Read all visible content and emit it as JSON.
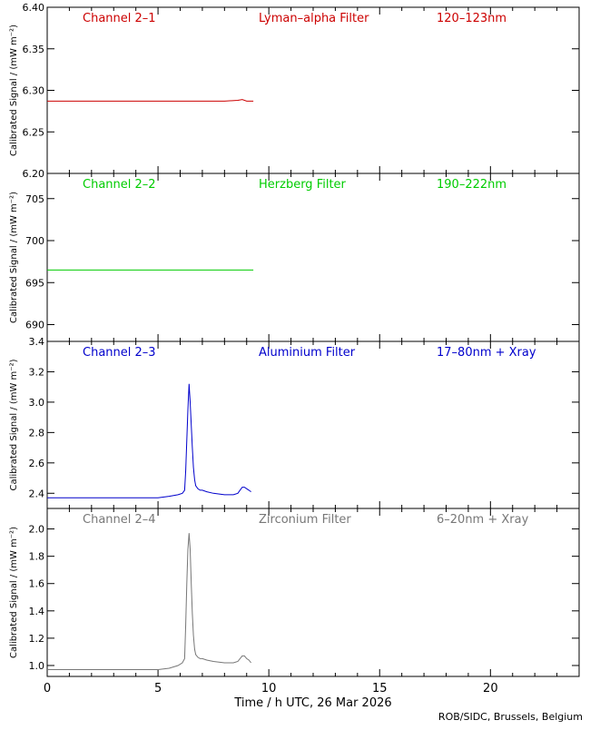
{
  "chart_data": [
    {
      "type": "line",
      "channel": "Channel 2–1",
      "filter": "Lyman–alpha Filter",
      "band": "120–123nm",
      "color": "#cc0000",
      "ylabel": "Calibrated Signal / (mW m⁻²)",
      "ylim": [
        6.2,
        6.4
      ],
      "yticks": [
        6.2,
        6.25,
        6.3,
        6.35,
        6.4
      ],
      "ytick_labels": [
        "6.20",
        "6.25",
        "6.30",
        "6.35",
        "6.40"
      ],
      "x": [
        0,
        4.0,
        8.0,
        8.6,
        8.8,
        9.0,
        9.3
      ],
      "y": [
        6.287,
        6.287,
        6.287,
        6.288,
        6.289,
        6.287,
        6.287
      ]
    },
    {
      "type": "line",
      "channel": "Channel 2–2",
      "filter": "Herzberg Filter",
      "band": "190–222nm",
      "color": "#00cc00",
      "ylabel": "Calibrated Signal / (mW m⁻²)",
      "ylim": [
        688,
        708
      ],
      "yticks": [
        690,
        695,
        700,
        705
      ],
      "ytick_labels": [
        "690",
        "695",
        "700",
        "705"
      ],
      "x": [
        0,
        4.0,
        9.3
      ],
      "y": [
        696.5,
        696.5,
        696.5
      ]
    },
    {
      "type": "line",
      "channel": "Channel 2–3",
      "filter": "Aluminium Filter",
      "band": "17–80nm + Xray",
      "color": "#0000cc",
      "ylabel": "Calibrated Signal / (mW m⁻²)",
      "ylim": [
        2.3,
        3.4
      ],
      "yticks": [
        2.4,
        2.6,
        2.8,
        3.0,
        3.2,
        3.4
      ],
      "ytick_labels": [
        "2.4",
        "2.6",
        "2.8",
        "3.0",
        "3.2",
        "3.4"
      ],
      "x": [
        0,
        1,
        2,
        3,
        4,
        5,
        5.5,
        5.9,
        6.1,
        6.2,
        6.25,
        6.3,
        6.35,
        6.4,
        6.45,
        6.5,
        6.55,
        6.6,
        6.65,
        6.7,
        6.8,
        6.9,
        7.0,
        7.2,
        7.5,
        8.0,
        8.4,
        8.6,
        8.7,
        8.8,
        8.9,
        9.0,
        9.1,
        9.2
      ],
      "y": [
        2.37,
        2.37,
        2.37,
        2.37,
        2.37,
        2.37,
        2.38,
        2.39,
        2.4,
        2.42,
        2.55,
        2.75,
        2.95,
        3.12,
        3.0,
        2.85,
        2.7,
        2.57,
        2.49,
        2.45,
        2.43,
        2.42,
        2.42,
        2.41,
        2.4,
        2.39,
        2.39,
        2.4,
        2.42,
        2.44,
        2.44,
        2.43,
        2.42,
        2.41
      ]
    },
    {
      "type": "line",
      "channel": "Channel 2–4",
      "filter": "Zirconium Filter",
      "band": "6–20nm + Xray",
      "color": "#777777",
      "ylabel": "Calibrated Signal / (mW m⁻²)",
      "ylim": [
        0.92,
        2.15
      ],
      "yticks": [
        1.0,
        1.2,
        1.4,
        1.6,
        1.8,
        2.0
      ],
      "ytick_labels": [
        "1.0",
        "1.2",
        "1.4",
        "1.6",
        "1.8",
        "2.0"
      ],
      "x": [
        0,
        1,
        2,
        3,
        4,
        5,
        5.5,
        5.9,
        6.1,
        6.2,
        6.25,
        6.3,
        6.35,
        6.4,
        6.45,
        6.5,
        6.55,
        6.6,
        6.65,
        6.7,
        6.8,
        6.9,
        7.0,
        7.2,
        7.5,
        8.0,
        8.4,
        8.6,
        8.7,
        8.8,
        8.9,
        9.0,
        9.1,
        9.2
      ],
      "y": [
        0.97,
        0.97,
        0.97,
        0.97,
        0.97,
        0.97,
        0.98,
        1.0,
        1.02,
        1.05,
        1.3,
        1.6,
        1.85,
        1.97,
        1.85,
        1.6,
        1.38,
        1.22,
        1.12,
        1.08,
        1.06,
        1.05,
        1.05,
        1.04,
        1.03,
        1.02,
        1.02,
        1.03,
        1.05,
        1.07,
        1.07,
        1.05,
        1.04,
        1.02
      ]
    }
  ],
  "x_axis": {
    "label": "Time / h UTC, 26 Mar 2026",
    "xlim": [
      0,
      24
    ],
    "ticks": [
      0,
      5,
      10,
      15,
      20
    ],
    "tick_labels": [
      "0",
      "5",
      "10",
      "15",
      "20"
    ],
    "minor_step": 1
  },
  "credit": "ROB/SIDC, Brussels, Belgium"
}
